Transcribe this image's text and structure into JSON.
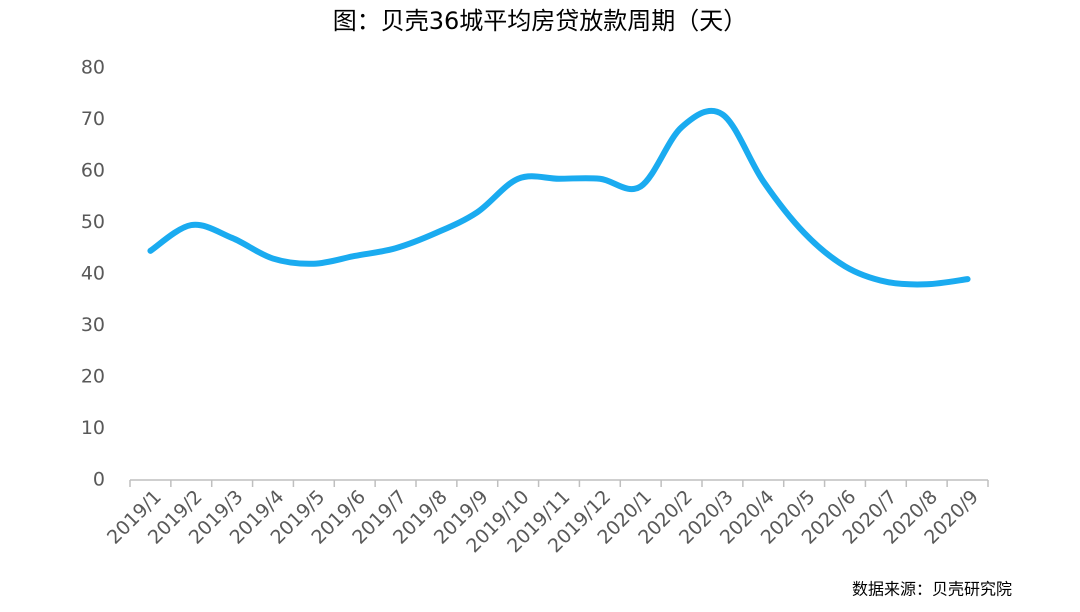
{
  "chart_data": {
    "type": "line",
    "title": "图：贝壳36城平均房贷放款周期（天）",
    "source": "数据来源：贝壳研究院",
    "categories": [
      "2019/1",
      "2019/2",
      "2019/3",
      "2019/4",
      "2019/5",
      "2019/6",
      "2019/7",
      "2019/8",
      "2019/9",
      "2019/10",
      "2019/11",
      "2019/12",
      "2020/1",
      "2020/2",
      "2020/3",
      "2020/4",
      "2020/5",
      "2020/6",
      "2020/7",
      "2020/8",
      "2020/9"
    ],
    "values": [
      44.5,
      49.5,
      47,
      43,
      42,
      43.5,
      45,
      48,
      52,
      58.5,
      58.5,
      58.5,
      57,
      68.5,
      71,
      58,
      48,
      41.5,
      38.5,
      38,
      39
    ],
    "color": "#1aabf0",
    "smooth": true,
    "grid": false,
    "ylim": [
      0,
      80
    ],
    "yticks": [
      0,
      10,
      20,
      30,
      40,
      50,
      60,
      70,
      80
    ]
  }
}
